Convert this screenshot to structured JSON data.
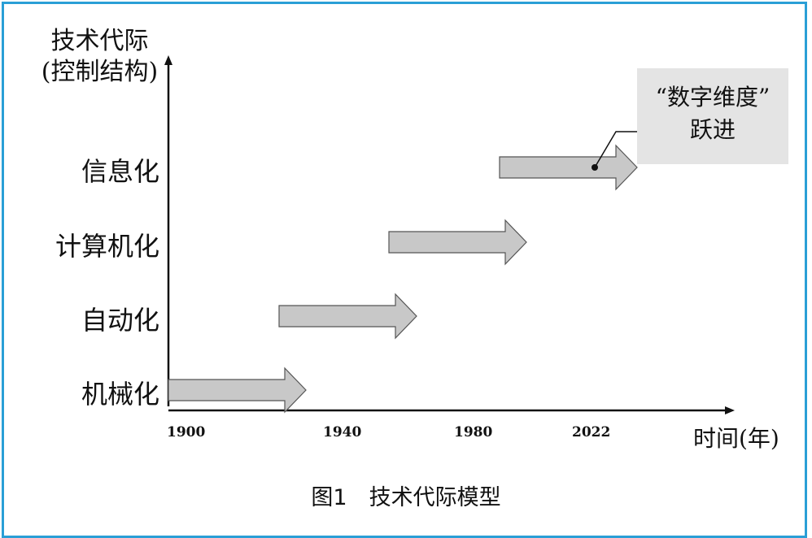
{
  "diagram": {
    "y_axis_title_line1": "技术代际",
    "y_axis_title_line2": "(控制结构)",
    "levels": [
      "机械化",
      "自动化",
      "计算机化",
      "信息化"
    ],
    "x_ticks": [
      "1900",
      "1940",
      "1980",
      "2022"
    ],
    "x_axis_title": "时间(年)",
    "callout_line1": "“数字维度”",
    "callout_line2": "跃进",
    "caption": "图1　技术代际模型"
  },
  "colors": {
    "frame": "#2a9fd6",
    "arrow_fill": "#c8c8c8",
    "arrow_stroke": "#555555",
    "callout_bg": "#e4e4e4"
  }
}
